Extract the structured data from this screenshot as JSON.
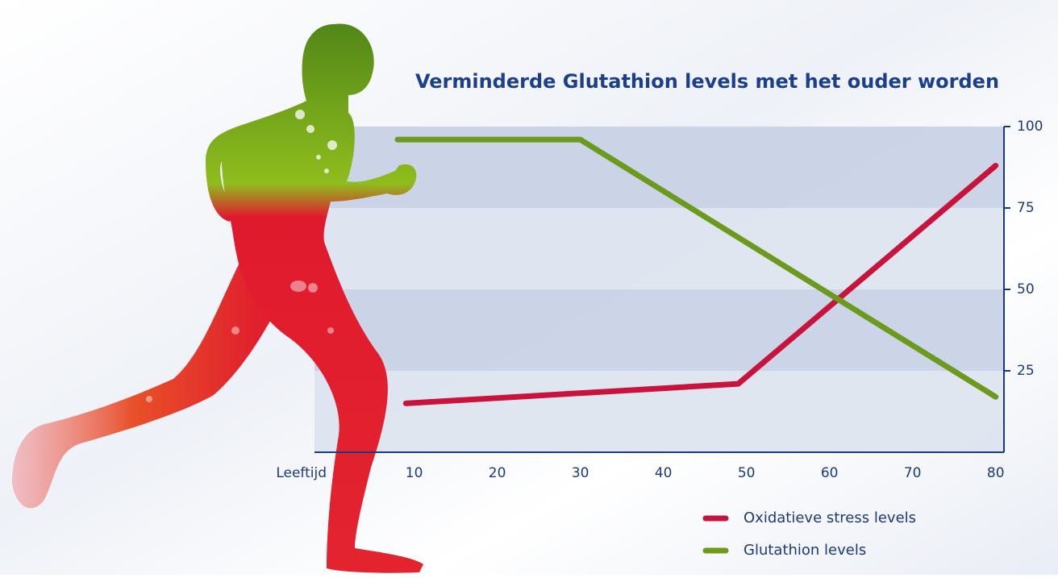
{
  "chart_data": {
    "type": "line",
    "title": "Verminderde Glutathion levels met het ouder worden",
    "x_label": "Leeftijd",
    "xlim": [
      -2,
      81
    ],
    "xticks": [
      10,
      20,
      30,
      40,
      50,
      60,
      70,
      80
    ],
    "ylim": [
      0,
      100
    ],
    "yticks": [
      25,
      50,
      75,
      100
    ],
    "series": [
      {
        "name": "Oxidatieve stress levels",
        "color": "#c8143c",
        "x": [
          9,
          49,
          80
        ],
        "values": [
          15,
          21,
          88
        ]
      },
      {
        "name": "Glutathion levels",
        "color": "#6b9a1e",
        "x": [
          8,
          30,
          80
        ],
        "values": [
          96,
          96,
          17
        ]
      }
    ],
    "legend": "bottom-right"
  }
}
